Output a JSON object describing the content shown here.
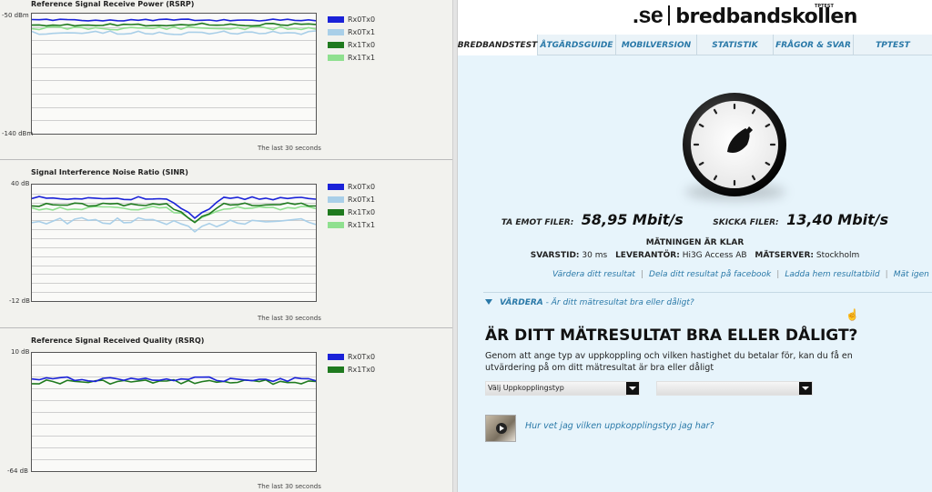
{
  "left": {
    "panels": [
      {
        "title": "Reference Signal Receive Power (RSRP)",
        "y_top": "-50 dBm",
        "y_bottom": "-140 dBm",
        "footer": "The last 30 seconds",
        "legend": [
          "Rx0Tx0",
          "Rx0Tx1",
          "Rx1Tx0",
          "Rx1Tx1"
        ]
      },
      {
        "title": "Signal Interference Noise Ratio (SINR)",
        "y_top": "40 dB",
        "y_bottom": "-12 dB",
        "footer": "The last 30 seconds",
        "legend": [
          "Rx0Tx0",
          "Rx0Tx1",
          "Rx1Tx0",
          "Rx1Tx1"
        ]
      },
      {
        "title": "Reference Signal Received Quality (RSRQ)",
        "y_top": "10 dB",
        "y_bottom": "-64 dB",
        "footer": "The last 30 seconds",
        "legend": [
          "Rx0Tx0",
          "Rx1Tx0"
        ]
      }
    ],
    "series_colors": {
      "Rx0Tx0": "#1a22d8",
      "Rx0Tx1": "#a9cfe8",
      "Rx1Tx0": "#1f7a1f",
      "Rx1Tx1": "#8fe08f"
    }
  },
  "right": {
    "brand": {
      "se": ".se",
      "name": "bredbandskollen",
      "sup": "TPTEST"
    },
    "tabs": [
      "BREDBANDSTEST",
      "ÅTGÄRDSGUIDE",
      "MOBILVERSION",
      "STATISTIK",
      "FRÅGOR & SVAR",
      "TPTEST"
    ],
    "active_tab": "BREDBANDSTEST",
    "download_label": "TA EMOT FILER:",
    "download_value": "58,95 Mbit/s",
    "upload_label": "SKICKA FILER:",
    "upload_value": "13,40 Mbit/s",
    "status": "MÄTNINGEN ÄR KLAR",
    "latency_label": "SVARSTID:",
    "latency_value": "30 ms",
    "provider_label": "LEVERANTÖR:",
    "provider_value": "Hi3G Access AB",
    "server_label": "MÄTSERVER:",
    "server_value": "Stockholm",
    "actions": [
      "Värdera ditt resultat",
      "Dela ditt resultat på facebook",
      "Ladda hem resultatbild",
      "Mät igen"
    ],
    "vardera_bold": "VÄRDERA",
    "vardera_rest": " - Är ditt mätresultat bra eller dåligt?",
    "question_title": "ÄR DITT MÄTRESULTAT BRA ELLER DÅLIGT?",
    "question_text": "Genom att ange typ av uppkoppling och vilken hastighet du betalar för, kan du få en utvärdering på om ditt mätresultat är bra eller dåligt",
    "select1_value": "Välj Uppkopplingstyp",
    "select2_value": "",
    "help_link": "Hur vet jag vilken uppkopplingstyp jag har?"
  }
}
